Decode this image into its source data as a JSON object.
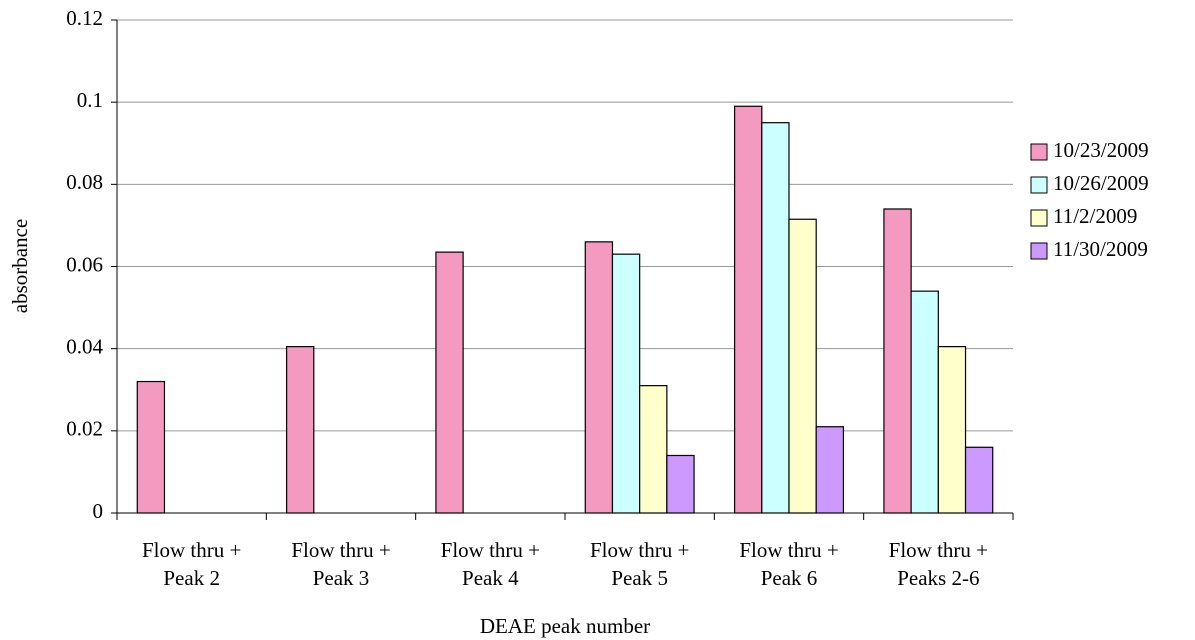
{
  "chart_data": {
    "type": "bar",
    "x_label": "DEAE peak number",
    "y_label": "absorbance",
    "categories": [
      [
        "Flow thru +",
        "Peak 2"
      ],
      [
        "Flow thru +",
        "Peak 3"
      ],
      [
        "Flow thru +",
        "Peak 4"
      ],
      [
        "Flow thru +",
        "Peak 5"
      ],
      [
        "Flow thru +",
        "Peak 6"
      ],
      [
        "Flow thru +",
        "Peaks 2-6"
      ]
    ],
    "series": [
      {
        "name": "10/23/2009",
        "color": "#f49ac1",
        "values": [
          0.032,
          0.0405,
          0.0635,
          0.066,
          0.099,
          0.074
        ]
      },
      {
        "name": "10/26/2009",
        "color": "#ccffff",
        "values": [
          null,
          null,
          null,
          0.063,
          0.095,
          0.054
        ]
      },
      {
        "name": "11/2/2009",
        "color": "#ffffcc",
        "values": [
          null,
          null,
          null,
          0.031,
          0.0715,
          0.0405
        ]
      },
      {
        "name": "11/30/2009",
        "color": "#cc99ff",
        "values": [
          null,
          null,
          null,
          0.014,
          0.021,
          0.016
        ]
      }
    ],
    "ylim": [
      0,
      0.12
    ],
    "yticks": [
      0,
      0.02,
      0.04,
      0.06,
      0.08,
      0.1,
      0.12
    ],
    "grid": true,
    "legend": "right"
  }
}
